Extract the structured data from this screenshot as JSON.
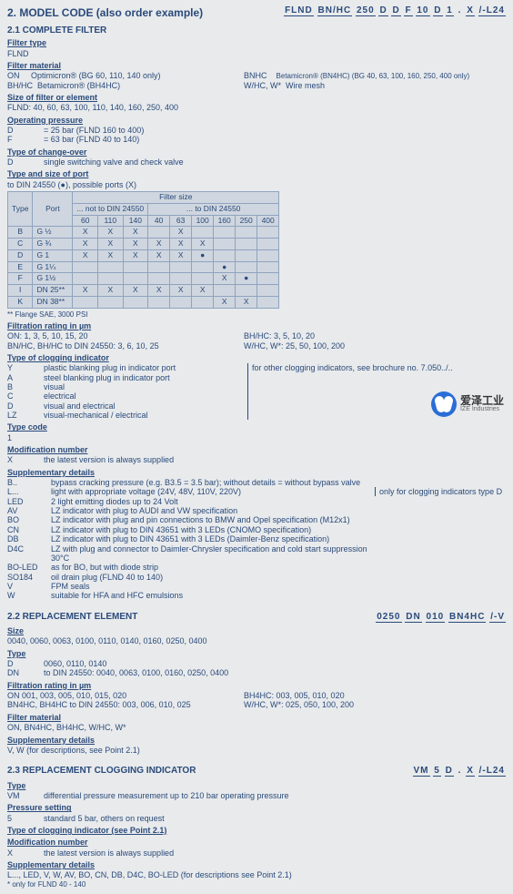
{
  "heading": "2. MODEL CODE (also order example)",
  "sec21": "2.1 COMPLETE FILTER",
  "code1": [
    "FLND",
    "BN/HC",
    "250",
    "D",
    "D",
    "F",
    "10",
    "D",
    "1",
    ".",
    "X",
    "/-L24"
  ],
  "filterType": {
    "title": "Filter type",
    "v": "FLND"
  },
  "filterMaterial": {
    "title": "Filter material",
    "rows": [
      [
        "ON",
        "Optimicron® (BG 60, 110, 140 only)",
        "BNHC",
        "Betamicron® (BN4HC) (BG 40, 63, 100, 160, 250, 400 only)"
      ],
      [
        "BH/HC",
        "Betamicron® (BH4HC)",
        "W/HC, W*",
        "Wire mesh"
      ]
    ]
  },
  "sizeFilter": {
    "title": "Size of filter or element",
    "v": "FLND:   40, 60, 63, 100, 110, 140, 160, 250, 400"
  },
  "opPressure": {
    "title": "Operating pressure",
    "rows": [
      [
        "D",
        "= 25 bar (FLND 160 to 400)"
      ],
      [
        "F",
        "= 63 bar (FLND 40 to 140)"
      ]
    ]
  },
  "changeOver": {
    "title": "Type of change-over",
    "rows": [
      [
        "D",
        "single switching valve and check valve"
      ]
    ]
  },
  "port": {
    "title": "Type and size of port",
    "note": "to DIN 24550 (●), possible ports (X)",
    "colgroups": [
      "Type",
      "Port",
      "Filter size"
    ],
    "sub1": "... not to DIN 24550",
    "sub2": "... to DIN 24550",
    "sizes1": [
      "60",
      "110",
      "140"
    ],
    "sizes2": [
      "40",
      "63",
      "100",
      "160",
      "250",
      "400"
    ],
    "rows": [
      [
        "B",
        "G ½",
        "X",
        "X",
        "X",
        "",
        "X",
        "",
        "",
        "",
        ""
      ],
      [
        "C",
        "G ¾",
        "X",
        "X",
        "X",
        "X",
        "X",
        "X",
        "",
        "",
        ""
      ],
      [
        "D",
        "G 1",
        "X",
        "X",
        "X",
        "X",
        "X",
        "●",
        "",
        "",
        ""
      ],
      [
        "E",
        "G 1¼",
        "",
        "",
        "",
        "",
        "",
        "",
        "●",
        "",
        ""
      ],
      [
        "F",
        "G 1½",
        "",
        "",
        "",
        "",
        "",
        "",
        "X",
        "●",
        ""
      ],
      [
        "I",
        "DN 25**",
        "X",
        "X",
        "X",
        "X",
        "X",
        "X",
        "",
        "",
        ""
      ],
      [
        "K",
        "DN 38**",
        "",
        "",
        "",
        "",
        "",
        "",
        "X",
        "X",
        ""
      ]
    ],
    "foot": "** Flange SAE, 3000 PSI"
  },
  "filtration": {
    "title": "Filtration rating in µm",
    "rows": [
      [
        "ON:  1, 3, 5, 10, 15, 20",
        "BH/HC:      3, 5, 10, 20"
      ],
      [
        "BN/HC, BH/HC to DIN 24550: 3, 6, 10, 25",
        "W/HC, W*: 25, 50, 100, 200"
      ]
    ]
  },
  "clog": {
    "title": "Type of clogging indicator",
    "rows": [
      [
        "Y",
        "plastic blanking plug in indicator port"
      ],
      [
        "A",
        "steel blanking plug in indicator port"
      ],
      [
        "B",
        "visual"
      ],
      [
        "C",
        "electrical"
      ],
      [
        "D",
        "visual and electrical"
      ],
      [
        "LZ",
        "visual-mechanical / electrical"
      ]
    ],
    "side": "for other clogging indicators, see brochure no. 7.050../.."
  },
  "typeCode": {
    "title": "Type code",
    "v": "1"
  },
  "modNum": {
    "title": "Modification number",
    "rows": [
      [
        "X",
        "the latest version is always supplied"
      ]
    ]
  },
  "supp": {
    "title": "Supplementary details",
    "rows": [
      [
        "B..",
        "bypass cracking pressure (e.g. B3.5 = 3.5 bar); without details = without bypass valve"
      ],
      [
        "L...",
        "light with appropriate voltage (24V, 48V, 110V, 220V)"
      ],
      [
        "LED",
        "2 light emitting diodes up to 24 Volt"
      ],
      [
        "AV",
        "LZ indicator with plug to AUDI and VW specification"
      ],
      [
        "BO",
        "LZ indicator with plug and pin connections to BMW and Opel specification (M12x1)"
      ],
      [
        "CN",
        "LZ indicator with plug to DIN 43651 with 3 LEDs (CNOMO specification)"
      ],
      [
        "DB",
        "LZ indicator with plug to DIN 43651 with 3 LEDs (Daimler-Benz specification)"
      ],
      [
        "D4C",
        "LZ with plug and connector to Daimler-Chrysler specification and cold start suppression 30°C"
      ],
      [
        "BO-LED",
        "as for BO, but with diode strip"
      ],
      [
        "SO184",
        "oil drain plug (FLND 40 to 140)"
      ],
      [
        "V",
        "FPM seals"
      ],
      [
        "W",
        "suitable for HFA and HFC emulsions"
      ]
    ],
    "side": "only for clogging indicators type D"
  },
  "sec22": "2.2 REPLACEMENT ELEMENT",
  "code2": [
    "0250",
    "DN",
    "010",
    "BN4HC",
    "/-V"
  ],
  "size22": {
    "title": "Size",
    "v": "0040, 0060, 0063, 0100, 0110, 0140, 0160, 0250, 0400"
  },
  "type22": {
    "title": "Type",
    "rows": [
      [
        "D",
        "0060, 0110, 0140"
      ],
      [
        "DN",
        "to DIN 24550: 0040, 0063, 0100, 0160, 0250, 0400"
      ]
    ]
  },
  "filt22": {
    "title": "Filtration rating in µm",
    "rows": [
      [
        "ON  001, 003, 005, 010, 015, 020",
        "BH4HC:     003, 005, 010, 020"
      ],
      [
        "BN4HC, BH4HC to DIN 24550: 003, 006, 010, 025",
        "W/HC, W*:  025, 050, 100, 200"
      ]
    ]
  },
  "mat22": {
    "title": "Filter material",
    "v": "ON, BN4HC, BH4HC, W/HC, W*"
  },
  "supp22": {
    "title": "Supplementary details",
    "v": "V, W (for descriptions, see Point 2.1)"
  },
  "sec23": "2.3 REPLACEMENT CLOGGING INDICATOR",
  "code3": [
    "VM",
    "5",
    "D",
    ".",
    "X",
    "/-L24"
  ],
  "type23": {
    "title": "Type",
    "rows": [
      [
        "VM",
        "differential pressure measurement up to 210 bar operating pressure"
      ]
    ]
  },
  "press23": {
    "title": "Pressure setting",
    "rows": [
      [
        "5",
        "standard 5 bar, others on request"
      ]
    ]
  },
  "clog23": {
    "title": "Type of clogging indicator (see Point 2.1)"
  },
  "mod23": {
    "title": "Modification number",
    "rows": [
      [
        "X",
        "the latest version is always supplied"
      ]
    ]
  },
  "supp23": {
    "title": "Supplementary details",
    "v": "L..., LED, V, W, AV, BO, CN, DB, D4C, BO-LED (for descriptions see Point 2.1)",
    "foot": "* only for FLND 40 - 140"
  },
  "logo": {
    "name": "爱泽工业",
    "sub": "IZE Industries"
  }
}
